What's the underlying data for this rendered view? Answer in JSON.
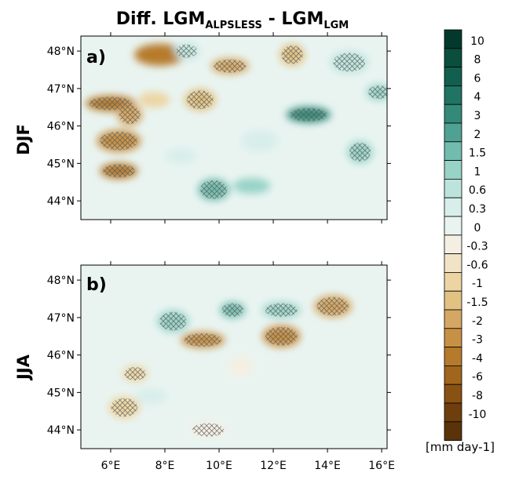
{
  "title": {
    "prefix": "Diff. LGM",
    "sub1": "ALPSLESS",
    "mid": " - LGM",
    "sub2": "LGM"
  },
  "chart_data": [
    {
      "type": "heatmap",
      "panel_label": "a)",
      "row_label": "DJF",
      "x_ticks": [
        "6°E",
        "8°E",
        "10°E",
        "12°E",
        "14°E",
        "16°E"
      ],
      "y_ticks": [
        "48°N",
        "47°N",
        "46°N",
        "45°N",
        "44°N"
      ],
      "xlim": [
        4.9,
        16.2
      ],
      "ylim": [
        43.5,
        48.4
      ],
      "hatching": "significance crosses",
      "regions": [
        {
          "lon": 6.3,
          "lat": 44.8,
          "value": -4,
          "hatched": true
        },
        {
          "lon": 6.3,
          "lat": 45.6,
          "value": -3,
          "hatched": true
        },
        {
          "lon": 6.0,
          "lat": 46.6,
          "value": -4,
          "hatched": true
        },
        {
          "lon": 6.7,
          "lat": 46.3,
          "value": -2,
          "hatched": true
        },
        {
          "lon": 7.6,
          "lat": 46.7,
          "value": -1,
          "hatched": false
        },
        {
          "lon": 7.8,
          "lat": 47.9,
          "value": -4,
          "hatched": false
        },
        {
          "lon": 8.8,
          "lat": 48.0,
          "value": 0.6,
          "hatched": true
        },
        {
          "lon": 9.3,
          "lat": 46.7,
          "value": -1.5,
          "hatched": true
        },
        {
          "lon": 10.4,
          "lat": 47.6,
          "value": -2,
          "hatched": true
        },
        {
          "lon": 12.7,
          "lat": 47.9,
          "value": -1.5,
          "hatched": true
        },
        {
          "lon": 13.3,
          "lat": 46.3,
          "value": 3,
          "hatched": true
        },
        {
          "lon": 14.8,
          "lat": 47.7,
          "value": 0.6,
          "hatched": true
        },
        {
          "lon": 15.9,
          "lat": 46.9,
          "value": 1,
          "hatched": true
        },
        {
          "lon": 9.8,
          "lat": 44.3,
          "value": 1.5,
          "hatched": true
        },
        {
          "lon": 11.2,
          "lat": 44.4,
          "value": 1,
          "hatched": false
        },
        {
          "lon": 15.2,
          "lat": 45.3,
          "value": 1,
          "hatched": true
        },
        {
          "lon": 8.6,
          "lat": 45.2,
          "value": 0.3,
          "hatched": false
        },
        {
          "lon": 11.5,
          "lat": 45.6,
          "value": 0.3,
          "hatched": false
        }
      ]
    },
    {
      "type": "heatmap",
      "panel_label": "b)",
      "row_label": "JJA",
      "x_ticks": [
        "6°E",
        "8°E",
        "10°E",
        "12°E",
        "14°E",
        "16°E"
      ],
      "y_ticks": [
        "48°N",
        "47°N",
        "46°N",
        "45°N",
        "44°N"
      ],
      "xlim": [
        4.9,
        16.2
      ],
      "ylim": [
        43.5,
        48.4
      ],
      "hatching": "significance crosses",
      "regions": [
        {
          "lon": 10.5,
          "lat": 47.2,
          "value": 1.5,
          "hatched": true
        },
        {
          "lon": 8.3,
          "lat": 46.9,
          "value": 1,
          "hatched": true
        },
        {
          "lon": 12.3,
          "lat": 47.2,
          "value": 1,
          "hatched": true
        },
        {
          "lon": 12.3,
          "lat": 46.5,
          "value": -3,
          "hatched": true
        },
        {
          "lon": 9.4,
          "lat": 46.4,
          "value": -3,
          "hatched": true
        },
        {
          "lon": 14.2,
          "lat": 47.3,
          "value": -2,
          "hatched": true
        },
        {
          "lon": 6.9,
          "lat": 45.5,
          "value": -1,
          "hatched": true
        },
        {
          "lon": 6.5,
          "lat": 44.6,
          "value": -1,
          "hatched": true
        },
        {
          "lon": 9.6,
          "lat": 44.0,
          "value": -0.3,
          "hatched": true
        },
        {
          "lon": 10.8,
          "lat": 45.7,
          "value": -0.3,
          "hatched": false
        },
        {
          "lon": 7.5,
          "lat": 44.9,
          "value": 0.3,
          "hatched": false
        }
      ]
    }
  ],
  "colorbar": {
    "unit": "[mm  day-1]",
    "labels": [
      "10",
      "8",
      "6",
      "4",
      "3",
      "2",
      "1.5",
      "1",
      "0.6",
      "0.3",
      "0",
      "-0.3",
      "-0.6",
      "-1",
      "-1.5",
      "-2",
      "-3",
      "-4",
      "-6",
      "-8",
      "-10"
    ],
    "colors": [
      "#03392c",
      "#0a4e3e",
      "#125f4f",
      "#1f7463",
      "#338a79",
      "#4fa293",
      "#72bcae",
      "#97d3c7",
      "#bde4dc",
      "#d8eeea",
      "#e9f4f1",
      "#f4efe2",
      "#f1e3c6",
      "#ecd5a3",
      "#e2c283",
      "#d5a764",
      "#c79145",
      "#b67a2c",
      "#a0661d",
      "#885212",
      "#6e3f0c",
      "#5a330a"
    ]
  }
}
